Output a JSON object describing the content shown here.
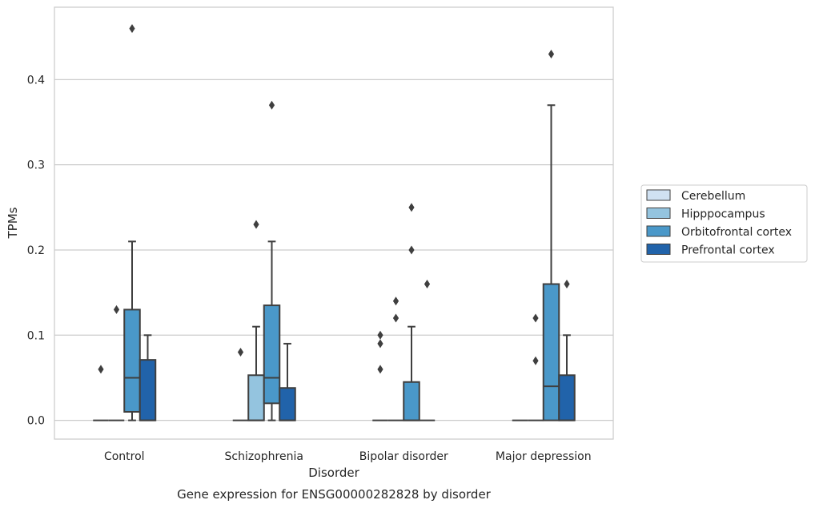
{
  "chart_data": {
    "type": "box",
    "caption": "Gene expression for ENSG00000282828 by disorder",
    "xlabel": "Disorder",
    "ylabel": "TPMs",
    "ylim": [
      -0.022,
      0.485
    ],
    "yticks": [
      0.0,
      0.1,
      0.2,
      0.3,
      0.4
    ],
    "ytick_labels": [
      "0.0",
      "0.1",
      "0.2",
      "0.3",
      "0.4"
    ],
    "grid": "horizontal",
    "legend_position": "right",
    "categories": [
      "Control",
      "Schizophrenia",
      "Bipolar disorder",
      "Major depression"
    ],
    "series": [
      {
        "name": "Cerebellum",
        "color": "#d0e1f2",
        "boxes": [
          {
            "q1": 0,
            "median": 0,
            "q3": 0,
            "whisker_low": 0,
            "whisker_high": 0,
            "outliers": [
              0.06
            ]
          },
          {
            "q1": 0,
            "median": 0,
            "q3": 0,
            "whisker_low": 0,
            "whisker_high": 0,
            "outliers": [
              0.08
            ]
          },
          {
            "q1": 0,
            "median": 0,
            "q3": 0,
            "whisker_low": 0,
            "whisker_high": 0,
            "outliers": [
              0.06,
              0.09,
              0.1
            ]
          },
          {
            "q1": 0,
            "median": 0,
            "q3": 0,
            "whisker_low": 0,
            "whisker_high": 0,
            "outliers": []
          }
        ]
      },
      {
        "name": "Hipppocampus",
        "color": "#94c4df",
        "boxes": [
          {
            "q1": 0,
            "median": 0,
            "q3": 0,
            "whisker_low": 0,
            "whisker_high": 0,
            "outliers": [
              0.13
            ]
          },
          {
            "q1": 0,
            "median": 0,
            "q3": 0.053,
            "whisker_low": 0,
            "whisker_high": 0.11,
            "outliers": [
              0.23
            ]
          },
          {
            "q1": 0,
            "median": 0,
            "q3": 0,
            "whisker_low": 0,
            "whisker_high": 0,
            "outliers": [
              0.12,
              0.14
            ]
          },
          {
            "q1": 0,
            "median": 0,
            "q3": 0,
            "whisker_low": 0,
            "whisker_high": 0,
            "outliers": [
              0.07,
              0.12
            ]
          }
        ]
      },
      {
        "name": "Orbitofrontal cortex",
        "color": "#4a98c9",
        "boxes": [
          {
            "q1": 0.01,
            "median": 0.05,
            "q3": 0.13,
            "whisker_low": 0,
            "whisker_high": 0.21,
            "outliers": [
              0.46
            ]
          },
          {
            "q1": 0.02,
            "median": 0.05,
            "q3": 0.135,
            "whisker_low": 0,
            "whisker_high": 0.21,
            "outliers": [
              0.37
            ]
          },
          {
            "q1": 0,
            "median": 0,
            "q3": 0.045,
            "whisker_low": 0,
            "whisker_high": 0.11,
            "outliers": [
              0.2,
              0.25
            ]
          },
          {
            "q1": 0,
            "median": 0.04,
            "q3": 0.16,
            "whisker_low": 0,
            "whisker_high": 0.37,
            "outliers": [
              0.43
            ]
          }
        ]
      },
      {
        "name": "Prefrontal cortex",
        "color": "#2163aa",
        "boxes": [
          {
            "q1": 0,
            "median": 0,
            "q3": 0.071,
            "whisker_low": 0,
            "whisker_high": 0.1,
            "outliers": []
          },
          {
            "q1": 0,
            "median": 0,
            "q3": 0.038,
            "whisker_low": 0,
            "whisker_high": 0.09,
            "outliers": []
          },
          {
            "q1": 0,
            "median": 0,
            "q3": 0,
            "whisker_low": 0,
            "whisker_high": 0,
            "outliers": [
              0.16
            ]
          },
          {
            "q1": 0,
            "median": 0,
            "q3": 0.053,
            "whisker_low": 0,
            "whisker_high": 0.1,
            "outliers": [
              0.16
            ]
          }
        ]
      }
    ]
  }
}
